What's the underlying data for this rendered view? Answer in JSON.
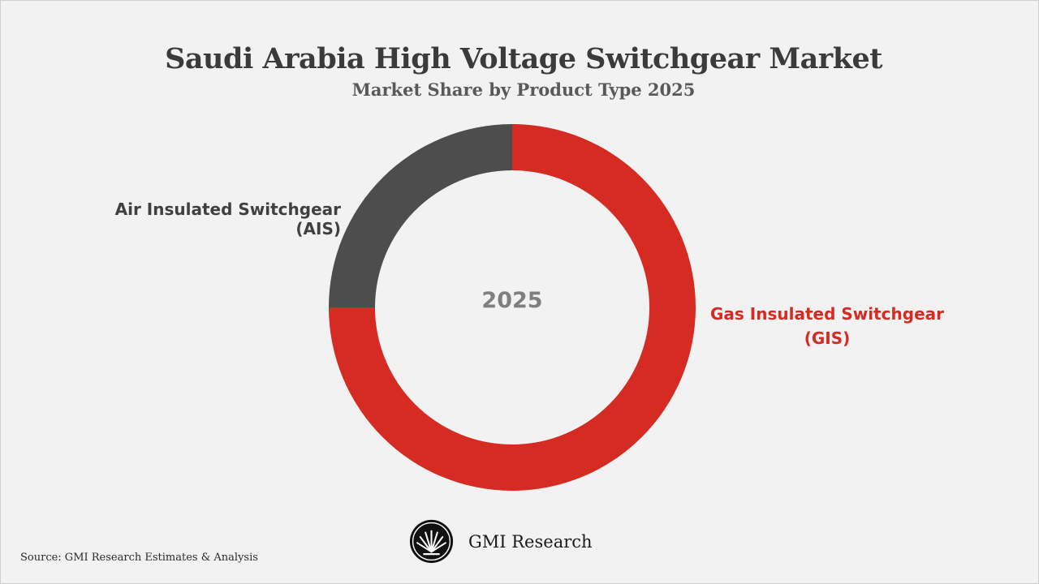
{
  "title": "Saudi Arabia High Voltage Switchgear Market",
  "subtitle": "Market Share by Product Type 2025",
  "brand": {
    "name": "GMI Research",
    "logo_icon": "palm-leaf-logo-icon"
  },
  "source": "Source: GMI Research Estimates & Analysis",
  "colors": {
    "background": "#f2f2f2",
    "ais": "#4d4d4d",
    "gis": "#d52b22",
    "center_text": "#7f7f7f"
  },
  "chart_data": {
    "type": "pie",
    "variant": "donut",
    "title": "Saudi Arabia High Voltage Switchgear Market",
    "subtitle": "Market Share by Product Type 2025",
    "center_label": "2025",
    "legend": "none",
    "slices": [
      {
        "label": "Gas Insulated Switchgear (GIS)",
        "value": 75,
        "color": "#d52b22"
      },
      {
        "label": "Air Insulated Switchgear (AIS)",
        "value": 25,
        "color": "#4d4d4d"
      }
    ]
  }
}
